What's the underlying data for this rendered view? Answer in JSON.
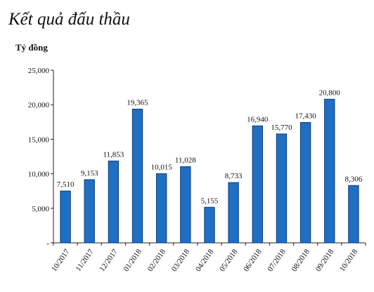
{
  "chart_data": {
    "type": "bar",
    "title": "Kết quả đấu thầu",
    "ylabel": "Tỷ đồng",
    "xlabel": "",
    "categories": [
      "10/2017",
      "11/2017",
      "12/2017",
      "01/2018",
      "02/2018",
      "03/2018",
      "04/2018",
      "05/2018",
      "06/2018",
      "07/2018",
      "08/2018",
      "09/2018",
      "10/2018"
    ],
    "values": [
      7510,
      9153,
      11853,
      19365,
      10015,
      11028,
      5155,
      8733,
      16940,
      15770,
      17430,
      20800,
      8306
    ],
    "value_labels": [
      "7,510",
      "9,153",
      "11,853",
      "19,365",
      "10,015",
      "11,028",
      "5,155",
      "8,733",
      "16,940",
      "15,770",
      "17,430",
      "20,800",
      "8,306"
    ],
    "y_ticks": [
      0,
      5000,
      10000,
      15000,
      20000,
      25000
    ],
    "y_tick_labels": [
      "-",
      "5,000",
      "10,000",
      "15,000",
      "20,000",
      "25,000"
    ],
    "ylim": [
      0,
      25000
    ],
    "grid": false,
    "legend": "none",
    "bar_color": "#1f6fc5",
    "bar_edge_color": "#0b3d75"
  }
}
